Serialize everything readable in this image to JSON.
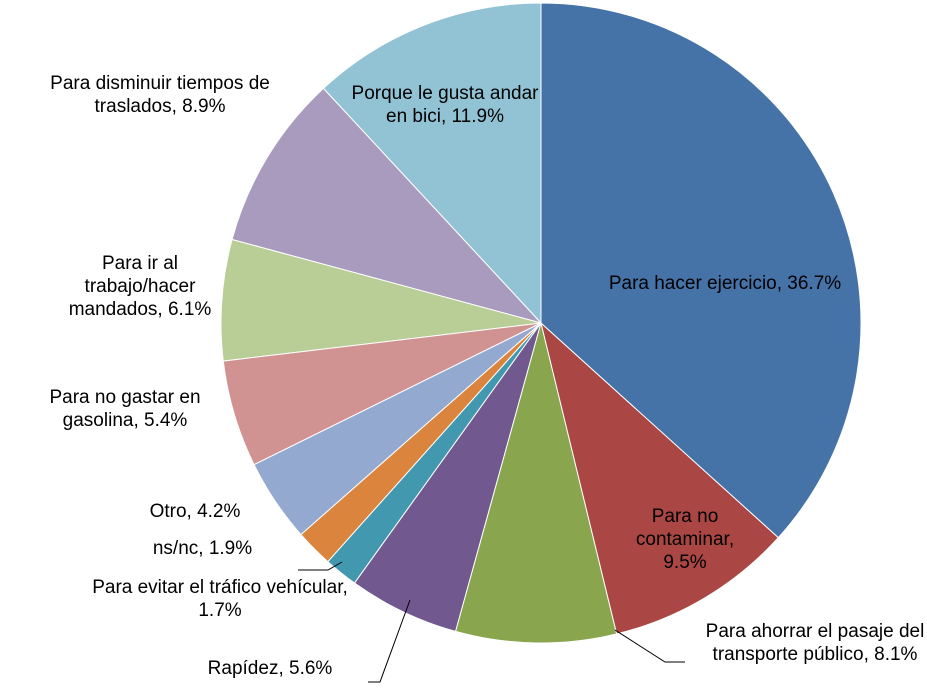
{
  "chart_data": {
    "type": "pie",
    "labels": [
      "Para hacer ejercicio, 36.7%",
      "Para no contaminar, 9.5%",
      "Para ahorrar el pasaje del transporte público, 8.1%",
      "Rapídez, 5.6%",
      "Para evitar el tráfico vehícular, 1.7%",
      "ns/nc, 1.9%",
      "Otro, 4.2%",
      "Para no gastar en gasolina, 5.4%",
      "Para ir al trabajo/hacer mandados, 6.1%",
      "Para disminuir tiempos de traslados, 8.9%",
      "Porque le gusta andar en bici, 11.9%"
    ],
    "values": [
      36.7,
      9.5,
      8.1,
      5.6,
      1.7,
      1.9,
      4.2,
      5.4,
      6.1,
      8.9,
      11.9
    ],
    "colors": [
      "#4572A7",
      "#AA4643",
      "#89A54E",
      "#71588F",
      "#4198AF",
      "#DB843D",
      "#93A9CF",
      "#D19392",
      "#B9CD96",
      "#A99BBD",
      "#92C3D5"
    ]
  }
}
